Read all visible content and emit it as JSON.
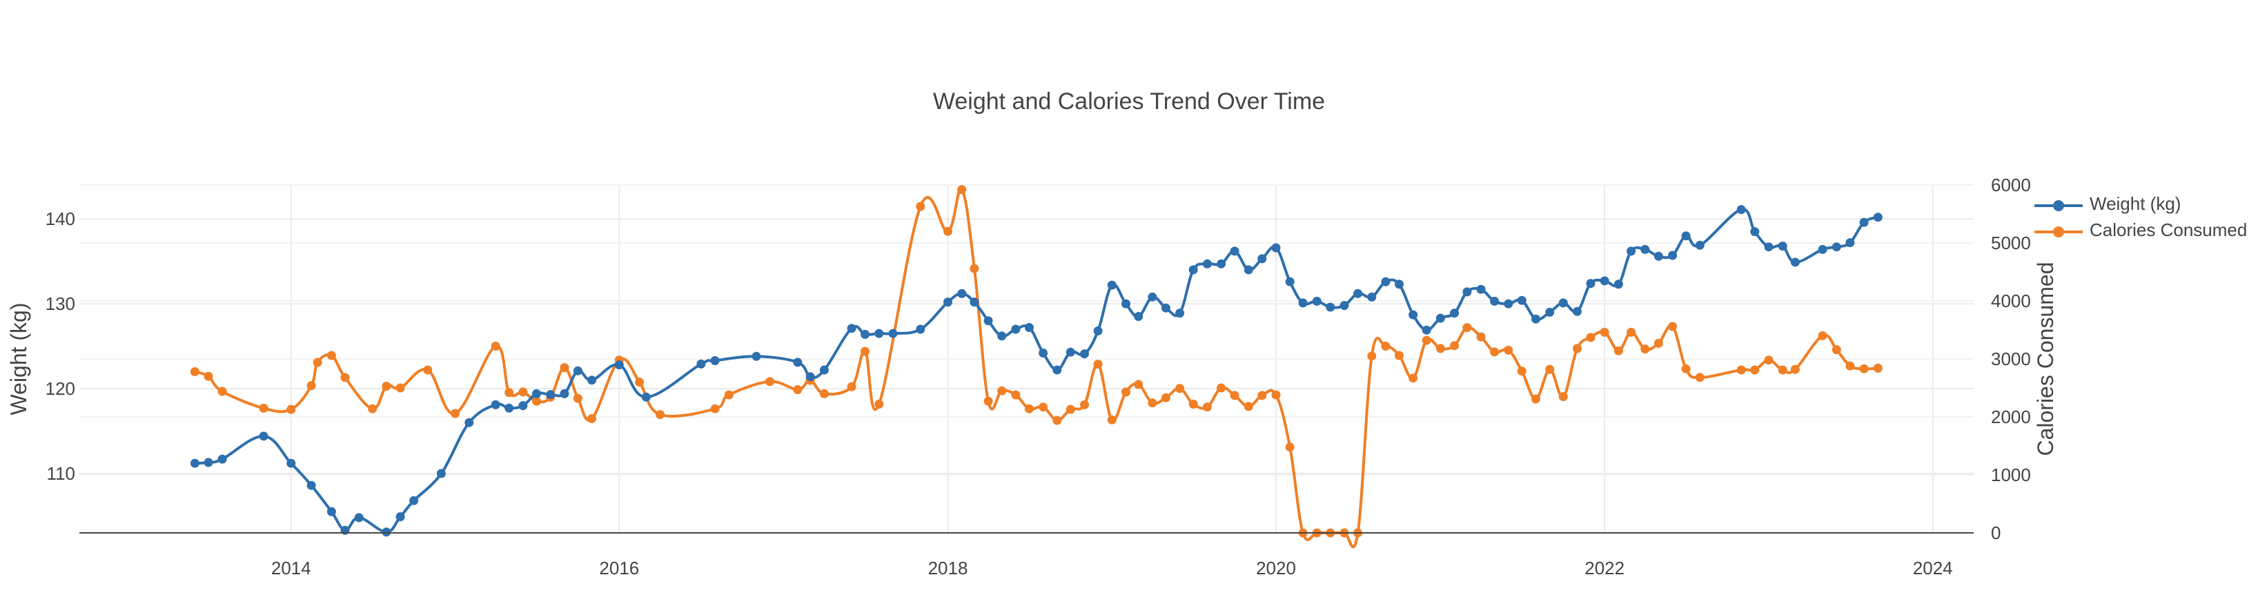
{
  "chart_data": {
    "type": "line",
    "title": "Weight and Calories Trend Over Time",
    "xlabel": "",
    "ylabel": "Weight (kg)",
    "y2label": "Calories Consumed",
    "xlim": [
      "2012-09-17",
      "2024-04-01"
    ],
    "ylim": [
      103,
      144
    ],
    "y2lim": [
      0,
      6000
    ],
    "xticks": [
      "2014",
      "2016",
      "2018",
      "2020",
      "2022",
      "2024"
    ],
    "yticks": [
      110,
      120,
      130,
      140
    ],
    "y2ticks": [
      0,
      1000,
      2000,
      3000,
      4000,
      5000,
      6000
    ],
    "grid": true,
    "legend_position": "top-right",
    "colors": {
      "weight": "#2e6fad",
      "calories": "#f07f25"
    },
    "series": [
      {
        "name": "Weight (kg)",
        "axis": "left",
        "points": [
          [
            "2013-06-01",
            111.2
          ],
          [
            "2013-07-01",
            111.3
          ],
          [
            "2013-08-01",
            111.7
          ],
          [
            "2013-11-01",
            114.4
          ],
          [
            "2014-01-01",
            111.2
          ],
          [
            "2014-02-15",
            108.6
          ],
          [
            "2014-04-01",
            105.5
          ],
          [
            "2014-05-01",
            103.3
          ],
          [
            "2014-06-01",
            104.8
          ],
          [
            "2014-08-01",
            103.1
          ],
          [
            "2014-09-01",
            104.9
          ],
          [
            "2014-10-01",
            106.8
          ],
          [
            "2014-12-01",
            110.0
          ],
          [
            "2015-02-01",
            116.0
          ],
          [
            "2015-04-01",
            118.1
          ],
          [
            "2015-05-01",
            117.7
          ],
          [
            "2015-06-01",
            118.0
          ],
          [
            "2015-07-01",
            119.4
          ],
          [
            "2015-08-01",
            119.3
          ],
          [
            "2015-09-01",
            119.4
          ],
          [
            "2015-10-01",
            122.1
          ],
          [
            "2015-11-01",
            121.0
          ],
          [
            "2016-01-01",
            122.8
          ],
          [
            "2016-03-01",
            119.0
          ],
          [
            "2016-07-01",
            122.9
          ],
          [
            "2016-08-01",
            123.3
          ],
          [
            "2016-11-01",
            123.8
          ],
          [
            "2017-02-01",
            123.1
          ],
          [
            "2017-03-01",
            121.4
          ],
          [
            "2017-04-01",
            122.2
          ],
          [
            "2017-06-01",
            127.1
          ],
          [
            "2017-07-01",
            126.4
          ],
          [
            "2017-08-01",
            126.5
          ],
          [
            "2017-09-01",
            126.5
          ],
          [
            "2017-11-01",
            127.0
          ],
          [
            "2018-01-01",
            130.2
          ],
          [
            "2018-02-01",
            131.2
          ],
          [
            "2018-03-01",
            130.2
          ],
          [
            "2018-04-01",
            128.0
          ],
          [
            "2018-05-01",
            126.2
          ],
          [
            "2018-06-01",
            127.0
          ],
          [
            "2018-07-01",
            127.2
          ],
          [
            "2018-08-01",
            124.2
          ],
          [
            "2018-09-01",
            122.2
          ],
          [
            "2018-10-01",
            124.3
          ],
          [
            "2018-11-01",
            124.1
          ],
          [
            "2018-12-01",
            126.8
          ],
          [
            "2019-01-01",
            132.2
          ],
          [
            "2019-02-01",
            130.0
          ],
          [
            "2019-03-01",
            128.5
          ],
          [
            "2019-04-01",
            130.8
          ],
          [
            "2019-05-01",
            129.5
          ],
          [
            "2019-06-01",
            128.9
          ],
          [
            "2019-07-01",
            134.0
          ],
          [
            "2019-08-01",
            134.7
          ],
          [
            "2019-09-01",
            134.7
          ],
          [
            "2019-10-01",
            136.2
          ],
          [
            "2019-11-01",
            134.0
          ],
          [
            "2019-12-01",
            135.3
          ],
          [
            "2020-01-01",
            136.6
          ],
          [
            "2020-02-01",
            132.6
          ],
          [
            "2020-03-01",
            130.1
          ],
          [
            "2020-04-01",
            130.3
          ],
          [
            "2020-05-01",
            129.6
          ],
          [
            "2020-06-01",
            129.8
          ],
          [
            "2020-07-01",
            131.2
          ],
          [
            "2020-08-01",
            130.8
          ],
          [
            "2020-09-01",
            132.6
          ],
          [
            "2020-10-01",
            132.3
          ],
          [
            "2020-11-01",
            128.7
          ],
          [
            "2020-12-01",
            126.9
          ],
          [
            "2021-01-01",
            128.3
          ],
          [
            "2021-02-01",
            128.9
          ],
          [
            "2021-03-01",
            131.4
          ],
          [
            "2021-04-01",
            131.7
          ],
          [
            "2021-05-01",
            130.3
          ],
          [
            "2021-06-01",
            130.0
          ],
          [
            "2021-07-01",
            130.4
          ],
          [
            "2021-08-01",
            128.2
          ],
          [
            "2021-09-01",
            129.0
          ],
          [
            "2021-10-01",
            130.1
          ],
          [
            "2021-11-01",
            129.1
          ],
          [
            "2021-12-01",
            132.4
          ],
          [
            "2022-01-01",
            132.7
          ],
          [
            "2022-02-01",
            132.3
          ],
          [
            "2022-03-01",
            136.2
          ],
          [
            "2022-04-01",
            136.4
          ],
          [
            "2022-05-01",
            135.6
          ],
          [
            "2022-06-01",
            135.7
          ],
          [
            "2022-07-01",
            138.0
          ],
          [
            "2022-08-01",
            136.9
          ],
          [
            "2022-11-01",
            141.1
          ],
          [
            "2022-12-01",
            138.5
          ],
          [
            "2023-01-01",
            136.7
          ],
          [
            "2023-02-01",
            136.8
          ],
          [
            "2023-03-01",
            134.9
          ],
          [
            "2023-05-01",
            136.4
          ],
          [
            "2023-06-01",
            136.7
          ],
          [
            "2023-07-01",
            137.2
          ],
          [
            "2023-08-01",
            139.6
          ],
          [
            "2023-09-01",
            140.2
          ]
        ]
      },
      {
        "name": "Calories Consumed",
        "axis": "right",
        "points": [
          [
            "2013-06-01",
            2780
          ],
          [
            "2013-07-01",
            2700
          ],
          [
            "2013-08-01",
            2440
          ],
          [
            "2013-11-01",
            2150
          ],
          [
            "2014-01-01",
            2130
          ],
          [
            "2014-02-15",
            2540
          ],
          [
            "2014-03-01",
            2940
          ],
          [
            "2014-04-01",
            3060
          ],
          [
            "2014-05-01",
            2680
          ],
          [
            "2014-07-01",
            2140
          ],
          [
            "2014-08-01",
            2530
          ],
          [
            "2014-09-01",
            2500
          ],
          [
            "2014-11-01",
            2810
          ],
          [
            "2015-01-01",
            2060
          ],
          [
            "2015-04-01",
            3220
          ],
          [
            "2015-05-01",
            2420
          ],
          [
            "2015-06-01",
            2430
          ],
          [
            "2015-07-01",
            2270
          ],
          [
            "2015-08-01",
            2340
          ],
          [
            "2015-09-01",
            2850
          ],
          [
            "2015-10-01",
            2320
          ],
          [
            "2015-11-01",
            1970
          ],
          [
            "2016-01-01",
            2980
          ],
          [
            "2016-02-15",
            2600
          ],
          [
            "2016-04-01",
            2040
          ],
          [
            "2016-08-01",
            2140
          ],
          [
            "2016-09-01",
            2380
          ],
          [
            "2016-12-01",
            2610
          ],
          [
            "2017-02-01",
            2470
          ],
          [
            "2017-03-01",
            2630
          ],
          [
            "2017-04-01",
            2400
          ],
          [
            "2017-06-01",
            2520
          ],
          [
            "2017-07-01",
            3130
          ],
          [
            "2017-08-01",
            2220
          ],
          [
            "2017-11-01",
            5630
          ],
          [
            "2018-01-01",
            5200
          ],
          [
            "2018-02-01",
            5920
          ],
          [
            "2018-03-01",
            4560
          ],
          [
            "2018-04-01",
            2270
          ],
          [
            "2018-05-01",
            2450
          ],
          [
            "2018-06-01",
            2380
          ],
          [
            "2018-07-01",
            2140
          ],
          [
            "2018-08-01",
            2170
          ],
          [
            "2018-09-01",
            1940
          ],
          [
            "2018-10-01",
            2130
          ],
          [
            "2018-11-01",
            2210
          ],
          [
            "2018-12-01",
            2910
          ],
          [
            "2019-01-01",
            1950
          ],
          [
            "2019-02-01",
            2430
          ],
          [
            "2019-03-01",
            2560
          ],
          [
            "2019-04-01",
            2240
          ],
          [
            "2019-05-01",
            2330
          ],
          [
            "2019-06-01",
            2490
          ],
          [
            "2019-07-01",
            2220
          ],
          [
            "2019-08-01",
            2170
          ],
          [
            "2019-09-01",
            2500
          ],
          [
            "2019-10-01",
            2370
          ],
          [
            "2019-11-01",
            2180
          ],
          [
            "2019-12-01",
            2370
          ],
          [
            "2020-01-01",
            2380
          ],
          [
            "2020-02-01",
            1480
          ],
          [
            "2020-03-01",
            0
          ],
          [
            "2020-04-01",
            0
          ],
          [
            "2020-05-01",
            0
          ],
          [
            "2020-06-01",
            0
          ],
          [
            "2020-07-01",
            0
          ],
          [
            "2020-08-01",
            3050
          ],
          [
            "2020-09-01",
            3220
          ],
          [
            "2020-10-01",
            3060
          ],
          [
            "2020-11-01",
            2670
          ],
          [
            "2020-12-01",
            3320
          ],
          [
            "2021-01-01",
            3180
          ],
          [
            "2021-02-01",
            3230
          ],
          [
            "2021-03-01",
            3540
          ],
          [
            "2021-04-01",
            3380
          ],
          [
            "2021-05-01",
            3120
          ],
          [
            "2021-06-01",
            3150
          ],
          [
            "2021-07-01",
            2790
          ],
          [
            "2021-08-01",
            2310
          ],
          [
            "2021-09-01",
            2820
          ],
          [
            "2021-10-01",
            2350
          ],
          [
            "2021-11-01",
            3180
          ],
          [
            "2021-12-01",
            3370
          ],
          [
            "2022-01-01",
            3460
          ],
          [
            "2022-02-01",
            3140
          ],
          [
            "2022-03-01",
            3460
          ],
          [
            "2022-04-01",
            3170
          ],
          [
            "2022-05-01",
            3270
          ],
          [
            "2022-06-01",
            3560
          ],
          [
            "2022-07-01",
            2830
          ],
          [
            "2022-08-01",
            2680
          ],
          [
            "2022-11-01",
            2810
          ],
          [
            "2022-12-01",
            2810
          ],
          [
            "2023-01-01",
            2980
          ],
          [
            "2023-02-01",
            2810
          ],
          [
            "2023-03-01",
            2820
          ],
          [
            "2023-05-01",
            3400
          ],
          [
            "2023-06-01",
            3160
          ],
          [
            "2023-07-01",
            2880
          ],
          [
            "2023-08-01",
            2830
          ],
          [
            "2023-09-01",
            2840
          ]
        ]
      }
    ]
  }
}
